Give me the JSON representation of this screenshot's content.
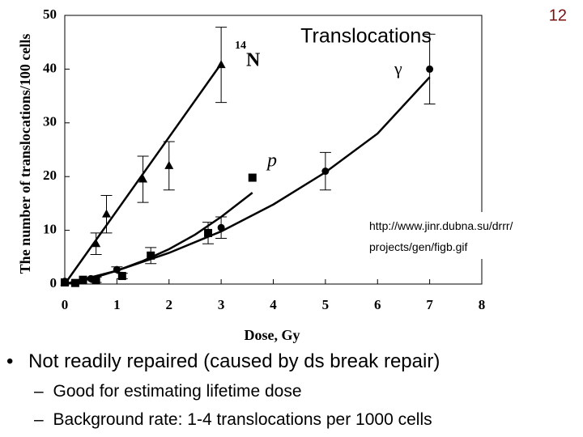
{
  "slide": {
    "number": "12",
    "heading": "Translocations",
    "url": "http://www.jinr.dubna.su/drrr/ projects/gen/figb.gif",
    "bullets": [
      "Not readily repaired (caused by ds break repair)"
    ],
    "sub_bullets": [
      "Good for estimating lifetime dose",
      "Background rate: 1-4 translocations per 1000 cells"
    ]
  },
  "chart_data": {
    "type": "scatter",
    "x_label": "Dose, Gy",
    "y_label": "The number of translocations/100 cells",
    "xlim": [
      0,
      8
    ],
    "xticks": [
      0,
      1,
      2,
      3,
      4,
      5,
      6,
      7,
      8
    ],
    "ylim": [
      0,
      50
    ],
    "yticks": [
      0,
      10,
      20,
      30,
      40,
      50
    ],
    "series": [
      {
        "name": "N",
        "mass_number": "14",
        "marker": "triangle",
        "color": "#000000",
        "x": [
          0,
          0.6,
          0.8,
          1.5,
          2,
          3
        ],
        "values": [
          0.3,
          7.5,
          13,
          19.5,
          22,
          40.8
        ],
        "errors": [
          0,
          2,
          3.5,
          4.3,
          4.5,
          7
        ],
        "fit_x": [
          0,
          3
        ],
        "fit_y": [
          0,
          41
        ]
      },
      {
        "name": "p",
        "marker": "square",
        "color": "#000000",
        "x": [
          0,
          0.2,
          0.35,
          0.6,
          1.1,
          1.65,
          2.75,
          3.6
        ],
        "values": [
          0.3,
          0.2,
          0.8,
          0.8,
          1.5,
          5.3,
          9.5,
          19.8
        ],
        "errors": [
          0,
          0,
          0,
          0.5,
          0.5,
          1.5,
          2,
          0
        ],
        "fit_x": [
          0,
          0.5,
          1,
          1.5,
          2,
          2.5,
          3,
          3.6
        ],
        "fit_y": [
          0,
          1,
          2.5,
          4.3,
          6.5,
          9.2,
          12.5,
          17
        ]
      },
      {
        "name": "γ",
        "marker": "circle",
        "color": "#000000",
        "x": [
          0,
          0.5,
          1,
          3,
          5,
          7
        ],
        "values": [
          0.5,
          1,
          2.7,
          10.5,
          21,
          40
        ],
        "errors": [
          0,
          0,
          0.5,
          2,
          3.5,
          6.5
        ],
        "fit_x": [
          0,
          1,
          2,
          3,
          4,
          5,
          6,
          7
        ],
        "fit_y": [
          0,
          2.5,
          5.8,
          9.8,
          14.8,
          20.8,
          28,
          38.5
        ]
      }
    ]
  }
}
